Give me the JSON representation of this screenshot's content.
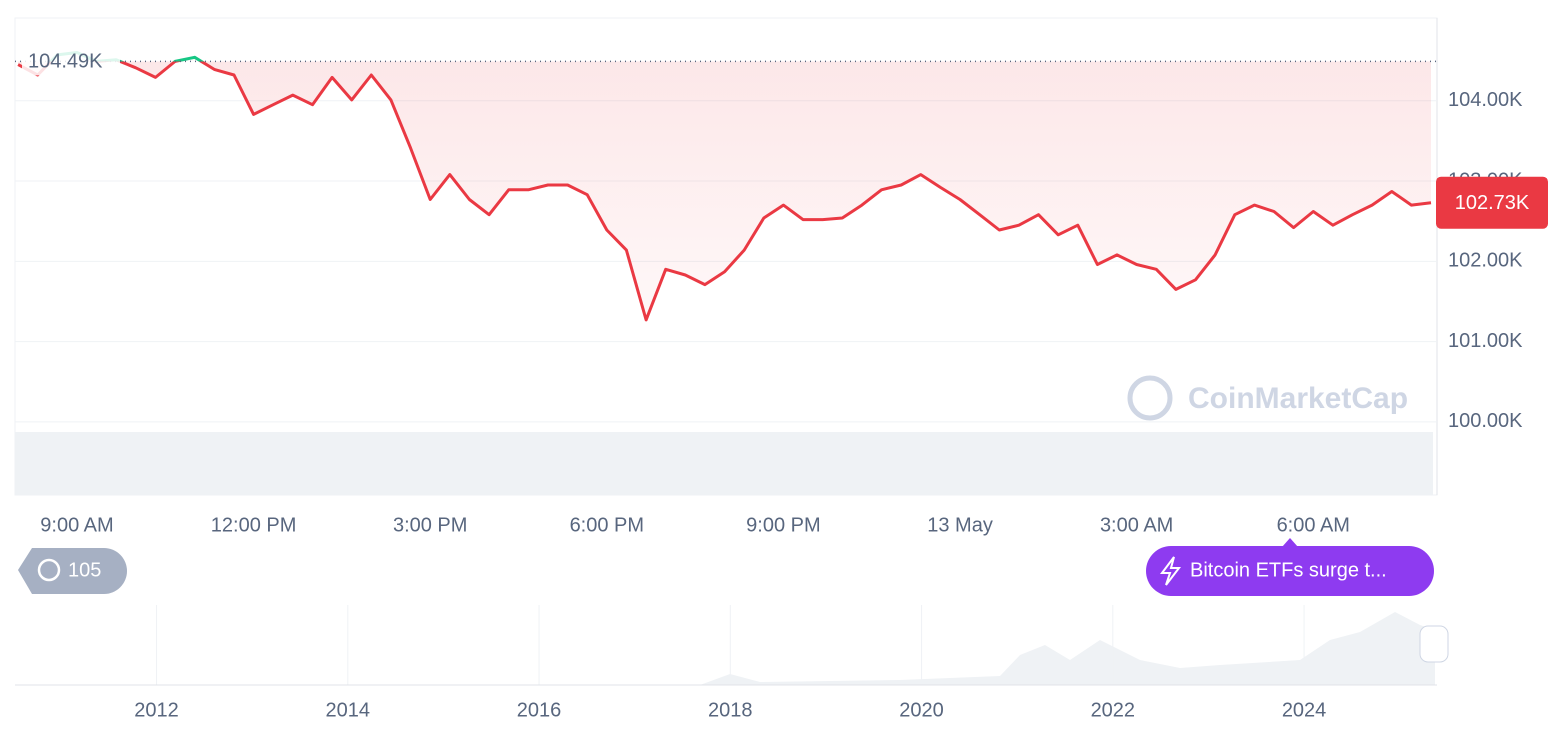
{
  "chart_data": {
    "type": "line",
    "categories": [
      null,
      null,
      null,
      "9:00 AM",
      null,
      null,
      null,
      null,
      null,
      null,
      null,
      null,
      "12:00 PM",
      null,
      null,
      null,
      null,
      null,
      null,
      null,
      null,
      "3:00 PM",
      null,
      null,
      null,
      null,
      null,
      null,
      null,
      null,
      "6:00 PM",
      null,
      null,
      null,
      null,
      null,
      null,
      null,
      null,
      "9:00 PM",
      null,
      null,
      null,
      null,
      null,
      null,
      null,
      null,
      "13 May",
      null,
      null,
      null,
      null,
      null,
      null,
      null,
      null,
      "3:00 AM",
      null,
      null,
      null,
      null,
      null,
      null,
      null,
      null,
      "6:00 AM",
      null,
      null,
      null,
      null,
      null,
      null
    ],
    "series": [
      {
        "color": "#ea3943",
        "up_color": "#16c784",
        "values": [
          104.45,
          104.32,
          104.57,
          104.6,
          104.49,
          104.51,
          104.41,
          104.29,
          104.49,
          104.54,
          104.39,
          104.32,
          103.83,
          103.95,
          104.07,
          103.95,
          104.29,
          104.01,
          104.32,
          104.01,
          103.41,
          102.77,
          103.08,
          102.77,
          102.58,
          102.89,
          102.89,
          102.95,
          102.95,
          102.83,
          102.39,
          102.14,
          101.27,
          101.9,
          101.83,
          101.71,
          101.87,
          102.14,
          102.54,
          102.7,
          102.52,
          102.52,
          102.54,
          102.7,
          102.89,
          102.95,
          103.08,
          102.92,
          102.77,
          102.58,
          102.39,
          102.45,
          102.58,
          102.33,
          102.45,
          101.96,
          102.08,
          101.96,
          101.9,
          101.65,
          101.77,
          102.08,
          102.58,
          102.7,
          102.62,
          102.42,
          102.62,
          102.45,
          102.58,
          102.7,
          102.87,
          102.7,
          102.73
        ]
      }
    ],
    "ylim": [
      99.09,
      105.03
    ],
    "yticks": [
      {
        "value": 100,
        "label": "100.00K"
      },
      {
        "value": 101,
        "label": "101.00K"
      },
      {
        "value": 102,
        "label": "102.00K"
      },
      {
        "value": 103,
        "label": "103.00K"
      },
      {
        "value": 104,
        "label": "104.00K"
      }
    ],
    "grid": true,
    "reference": {
      "value": 104.49,
      "label": "104.49K"
    },
    "current": {
      "value": 102.73,
      "label": "102.73K"
    },
    "watermark": "CoinMarketCap",
    "news_count": 105,
    "news": "Bitcoin ETFs surge t...",
    "navigator": {
      "xlim": [
        2010.52,
        2025.39
      ],
      "xticks": [
        2012,
        2014,
        2016,
        2018,
        2020,
        2022,
        2024
      ]
    }
  }
}
